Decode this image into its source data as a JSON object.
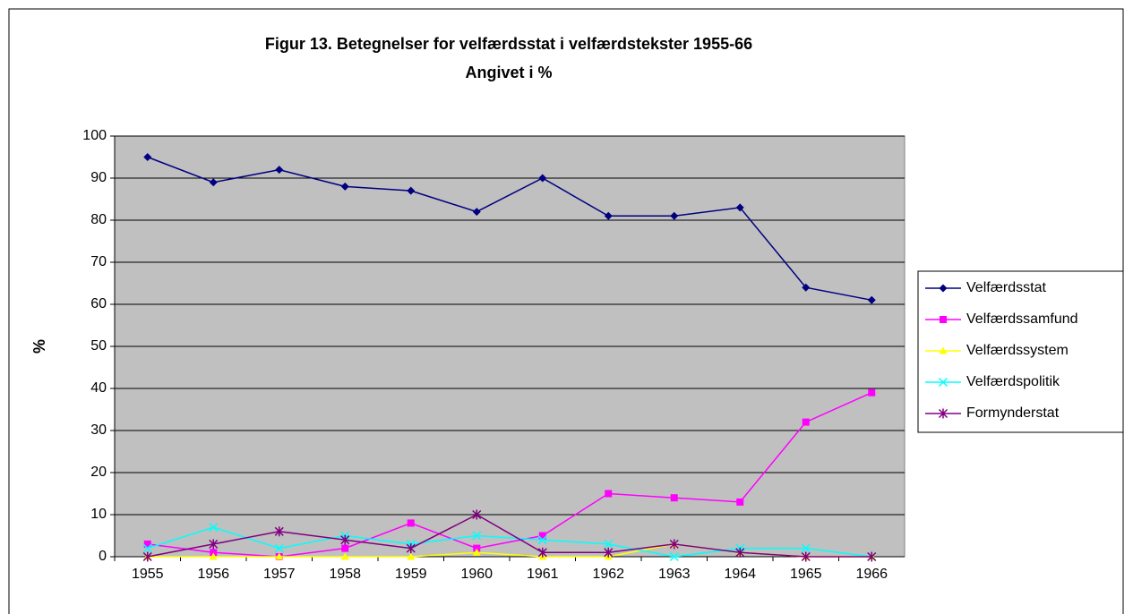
{
  "chart_data": {
    "type": "line",
    "title": "Figur 13. Betegnelser for velfærdsstat i velfærdstekster 1955-66",
    "subtitle": "Angivet i %",
    "ylabel": "%",
    "categories": [
      "1955",
      "1956",
      "1957",
      "1958",
      "1959",
      "1960",
      "1961",
      "1962",
      "1963",
      "1964",
      "1965",
      "1966"
    ],
    "series": [
      {
        "name": "Velfærdsstat",
        "color": "#000080",
        "marker": "diamond",
        "values": [
          95,
          89,
          92,
          88,
          87,
          82,
          90,
          81,
          81,
          83,
          64,
          61
        ]
      },
      {
        "name": "Velfærdssamfund",
        "color": "#ff00ff",
        "marker": "square",
        "values": [
          3,
          1,
          0,
          2,
          8,
          2,
          5,
          15,
          14,
          13,
          32,
          39
        ]
      },
      {
        "name": "Velfærdssystem",
        "color": "#ffff00",
        "marker": "triangle",
        "values": [
          0,
          0,
          0,
          0,
          0,
          1,
          0,
          0,
          3,
          1,
          0,
          0
        ]
      },
      {
        "name": "Velfærdspolitik",
        "color": "#00ffff",
        "marker": "x",
        "values": [
          2,
          7,
          2,
          5,
          3,
          5,
          4,
          3,
          0,
          2,
          2,
          0
        ]
      },
      {
        "name": "Formynderstat",
        "color": "#800080",
        "marker": "star",
        "values": [
          0,
          3,
          6,
          4,
          2,
          10,
          1,
          1,
          3,
          1,
          0,
          0
        ]
      }
    ],
    "ylim": [
      0,
      100
    ],
    "yticks": [
      0,
      10,
      20,
      30,
      40,
      50,
      60,
      70,
      80,
      90,
      100
    ],
    "grid": true,
    "legend": "right"
  }
}
